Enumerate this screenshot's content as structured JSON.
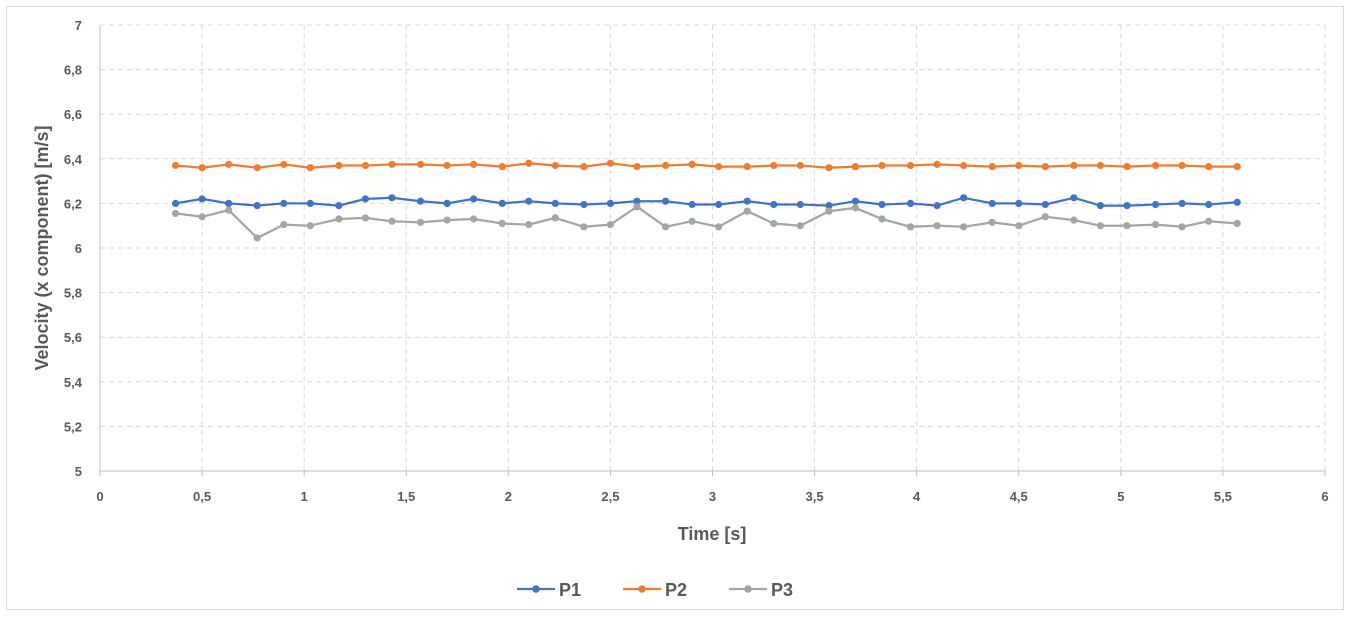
{
  "chart_data": {
    "type": "line",
    "title": "",
    "xlabel": "Time [s]",
    "ylabel": "Velocity (x component)  [m/s]",
    "xlim": [
      0,
      6
    ],
    "ylim": [
      5,
      7
    ],
    "x_ticks": [
      "0",
      "0,5",
      "1",
      "1,5",
      "2",
      "2,5",
      "3",
      "3,5",
      "4",
      "4,5",
      "5",
      "5,5",
      "6"
    ],
    "x_tick_values": [
      0,
      0.5,
      1,
      1.5,
      2,
      2.5,
      3,
      3.5,
      4,
      4.5,
      5,
      5.5,
      6
    ],
    "y_ticks": [
      "5",
      "5,2",
      "5,4",
      "5,6",
      "5,8",
      "6",
      "6,2",
      "6,4",
      "6,6",
      "6,8",
      "7"
    ],
    "y_tick_values": [
      5,
      5.2,
      5.4,
      5.6,
      5.8,
      6,
      6.2,
      6.4,
      6.6,
      6.8,
      7
    ],
    "grid": true,
    "legend_position": "bottom",
    "x": [
      0.37,
      0.5,
      0.63,
      0.77,
      0.9,
      1.03,
      1.17,
      1.3,
      1.43,
      1.57,
      1.7,
      1.83,
      1.97,
      2.1,
      2.23,
      2.37,
      2.5,
      2.63,
      2.77,
      2.9,
      3.03,
      3.17,
      3.3,
      3.43,
      3.57,
      3.7,
      3.83,
      3.97,
      4.1,
      4.23,
      4.37,
      4.5,
      4.63,
      4.77,
      4.9,
      5.03,
      5.17,
      5.3,
      5.43,
      5.57
    ],
    "series": [
      {
        "name": "P1",
        "color": "#4472c4",
        "values": [
          6.2,
          6.22,
          6.2,
          6.19,
          6.2,
          6.2,
          6.19,
          6.22,
          6.225,
          6.21,
          6.2,
          6.22,
          6.2,
          6.21,
          6.2,
          6.195,
          6.2,
          6.21,
          6.21,
          6.195,
          6.195,
          6.21,
          6.195,
          6.195,
          6.19,
          6.21,
          6.195,
          6.2,
          6.19,
          6.225,
          6.2,
          6.2,
          6.195,
          6.225,
          6.19,
          6.19,
          6.195,
          6.2,
          6.195,
          6.205
        ]
      },
      {
        "name": "P2",
        "color": "#ed7d31",
        "values": [
          6.37,
          6.36,
          6.375,
          6.36,
          6.375,
          6.36,
          6.37,
          6.37,
          6.375,
          6.375,
          6.37,
          6.375,
          6.365,
          6.38,
          6.37,
          6.365,
          6.38,
          6.365,
          6.37,
          6.375,
          6.365,
          6.365,
          6.37,
          6.37,
          6.36,
          6.365,
          6.37,
          6.37,
          6.375,
          6.37,
          6.365,
          6.37,
          6.365,
          6.37,
          6.37,
          6.365,
          6.37,
          6.37,
          6.365,
          6.365
        ]
      },
      {
        "name": "P3",
        "color": "#a5a5a5",
        "values": [
          6.155,
          6.14,
          6.17,
          6.045,
          6.105,
          6.1,
          6.13,
          6.135,
          6.12,
          6.115,
          6.125,
          6.13,
          6.11,
          6.105,
          6.135,
          6.095,
          6.105,
          6.185,
          6.095,
          6.12,
          6.095,
          6.165,
          6.11,
          6.1,
          6.165,
          6.18,
          6.13,
          6.095,
          6.1,
          6.095,
          6.115,
          6.1,
          6.14,
          6.125,
          6.1,
          6.1,
          6.105,
          6.095,
          6.12,
          6.11
        ]
      }
    ]
  }
}
